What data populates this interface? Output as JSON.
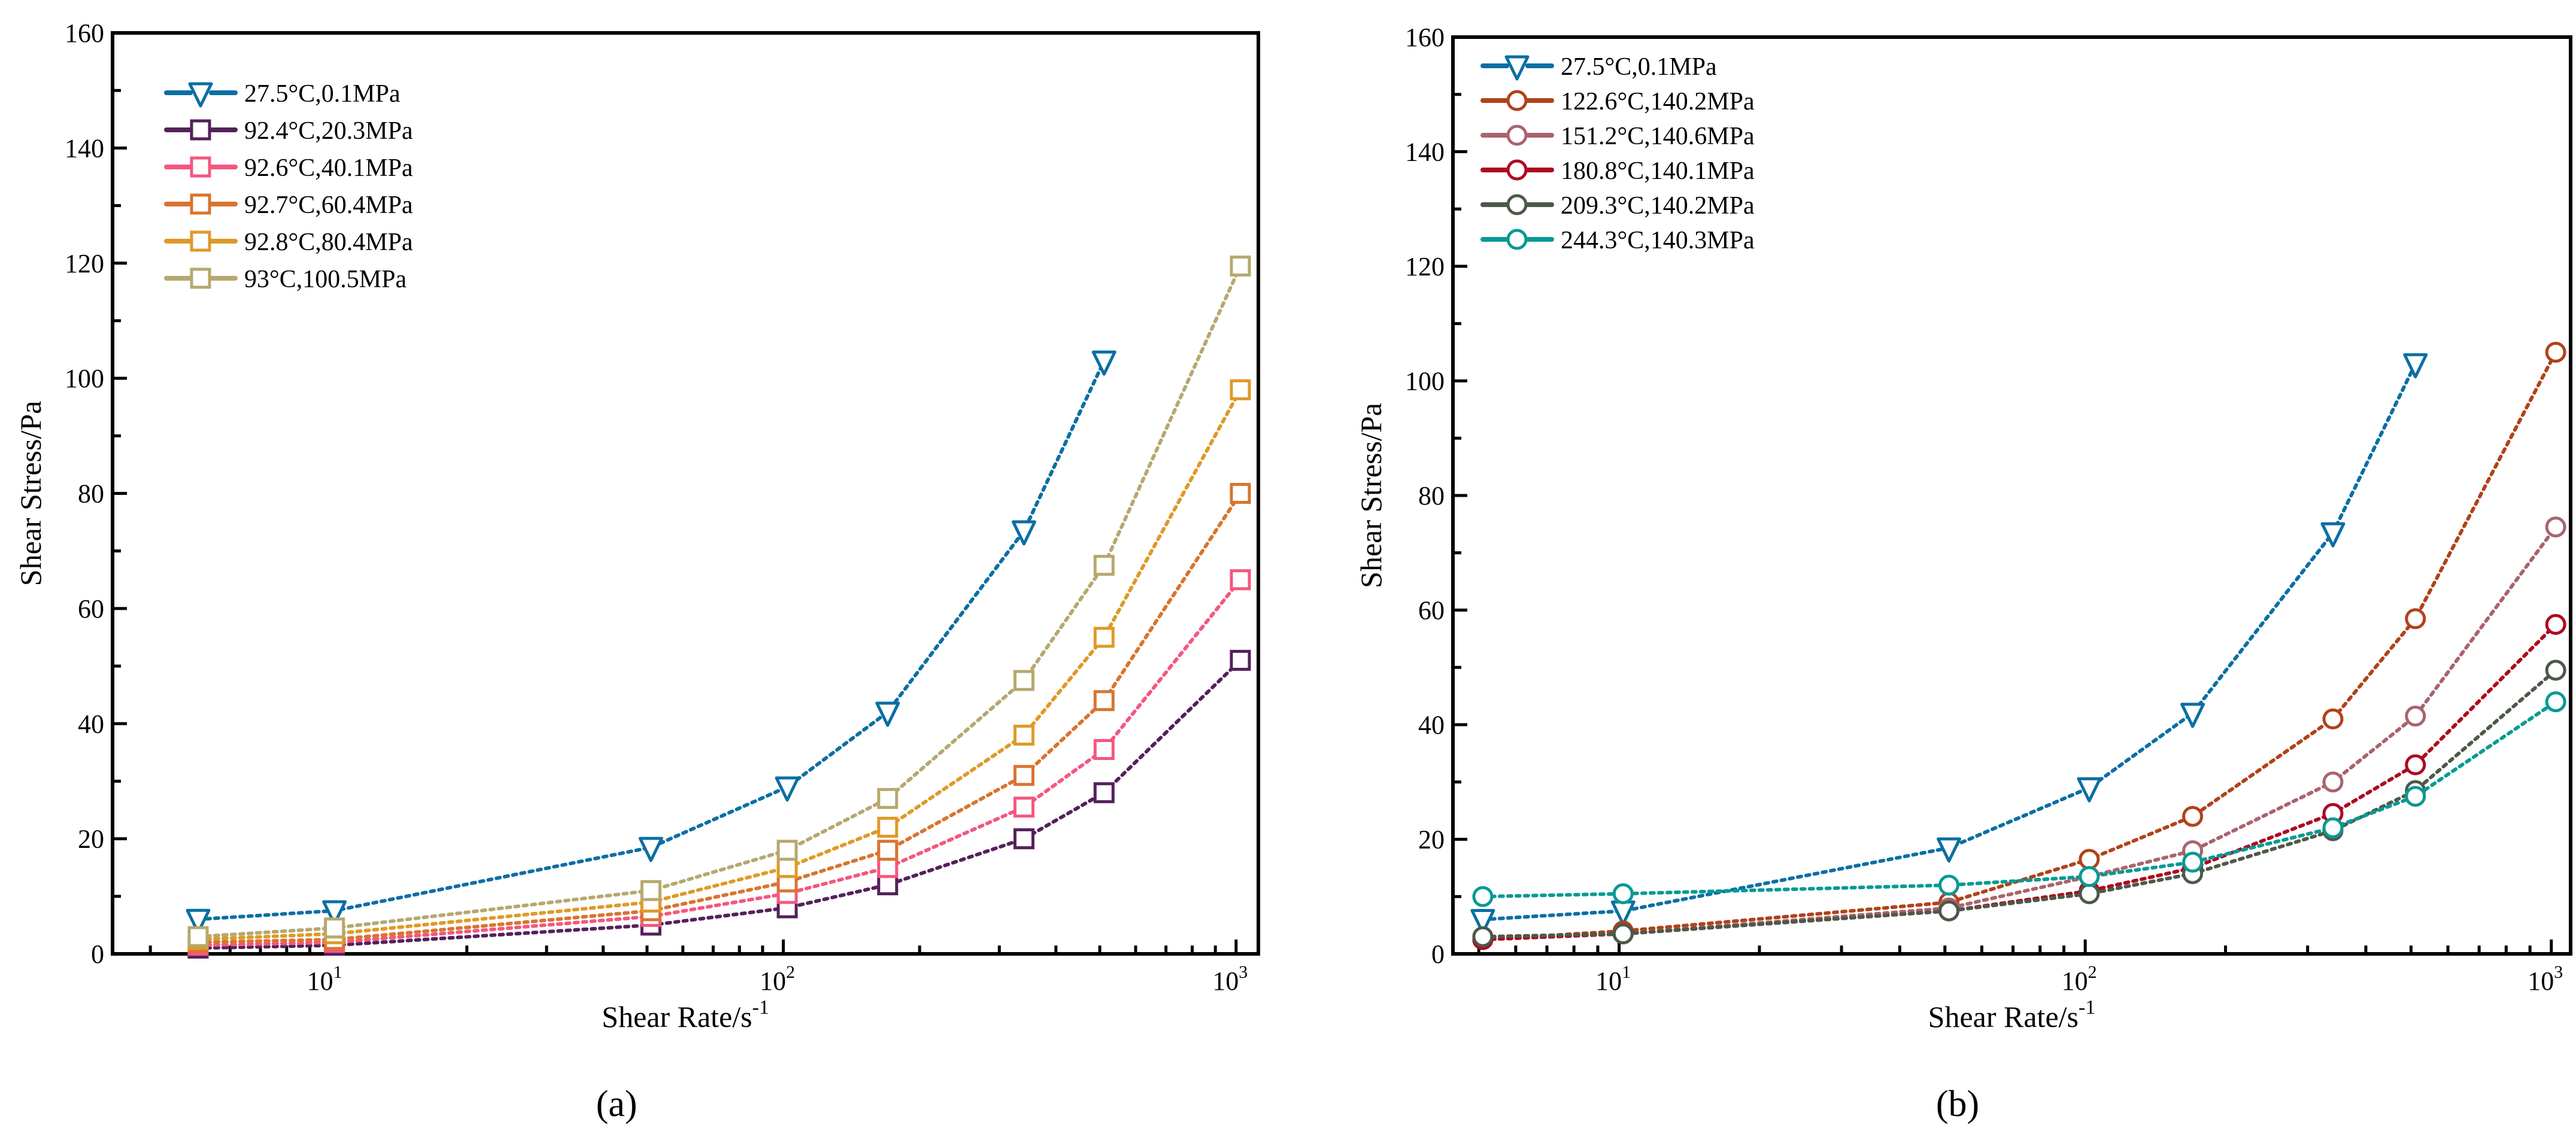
{
  "chart_data": [
    {
      "type": "line",
      "panel_label": "(a)",
      "xlabel": "Shear Rate/s",
      "xlabel_sup": "-1",
      "ylabel": "Shear Stress/Pa",
      "xscale": "log",
      "xlim": [
        3.3,
        1120
      ],
      "ylim": [
        0,
        160
      ],
      "yticks": [
        0,
        20,
        40,
        60,
        80,
        100,
        120,
        140,
        160
      ],
      "xticks": [
        {
          "base": "10",
          "exp": "1",
          "v": 10
        },
        {
          "base": "10",
          "exp": "2",
          "v": 100
        },
        {
          "base": "10",
          "exp": "3",
          "v": 1000
        }
      ],
      "legend_position": "top-left",
      "x": [
        5.1,
        10.2,
        51,
        102,
        170,
        340,
        511,
        1022
      ],
      "series": [
        {
          "name": "27.5°C,0.1MPa",
          "color": "#0a6fa3",
          "marker": "triangle-down",
          "values": [
            6,
            7.5,
            18.5,
            29,
            42,
            73.5,
            103,
            null
          ]
        },
        {
          "name": "92.4°C,20.3MPa",
          "color": "#54215a",
          "marker": "square",
          "values": [
            1,
            1.5,
            5,
            8,
            12,
            20,
            28,
            51
          ]
        },
        {
          "name": "92.6°C,40.1MPa",
          "color": "#f4577f",
          "marker": "square",
          "values": [
            1.5,
            2,
            6.5,
            10.5,
            15,
            25.5,
            35.5,
            65
          ]
        },
        {
          "name": "92.7°C,60.4MPa",
          "color": "#d9742f",
          "marker": "square",
          "values": [
            2,
            2.5,
            7.5,
            12.5,
            18,
            31,
            44,
            80
          ]
        },
        {
          "name": "92.8°C,80.4MPa",
          "color": "#de9a28",
          "marker": "square",
          "values": [
            2.5,
            3.5,
            9,
            15,
            22,
            38,
            55,
            98
          ]
        },
        {
          "name": "93°C,100.5MPa",
          "color": "#b6a86f",
          "marker": "square",
          "values": [
            3,
            4.5,
            11,
            18,
            27,
            47.5,
            67.5,
            119.5
          ]
        }
      ]
    },
    {
      "type": "line",
      "panel_label": "(b)",
      "xlabel": "Shear Rate/s",
      "xlabel_sup": "-1",
      "ylabel": "Shear Stress/Pa",
      "xscale": "log",
      "xlim": [
        4.4,
        1100
      ],
      "ylim": [
        0,
        160
      ],
      "yticks": [
        0,
        20,
        40,
        60,
        80,
        100,
        120,
        140,
        160
      ],
      "xticks": [
        {
          "base": "10",
          "exp": "1",
          "v": 10
        },
        {
          "base": "10",
          "exp": "2",
          "v": 100
        },
        {
          "base": "10",
          "exp": "3",
          "v": 1000
        }
      ],
      "legend_position": "top-left",
      "x": [
        5.1,
        10.2,
        51,
        102,
        170,
        340,
        511,
        1022
      ],
      "series": [
        {
          "name": "27.5°C,0.1MPa",
          "color": "#0a6fa3",
          "marker": "triangle-down",
          "values": [
            6,
            7.5,
            18.5,
            29,
            42,
            73.5,
            103,
            null
          ]
        },
        {
          "name": "122.6°C,140.2MPa",
          "color": "#b04319",
          "marker": "circle",
          "values": [
            2.5,
            4,
            9,
            16.5,
            24,
            41,
            58.5,
            105
          ]
        },
        {
          "name": "151.2°C,140.6MPa",
          "color": "#a9646d",
          "marker": "circle",
          "values": [
            2.5,
            3.5,
            8,
            13.5,
            18,
            30,
            41.5,
            74.5
          ]
        },
        {
          "name": "180.8°C,140.1MPa",
          "color": "#ad0a21",
          "marker": "circle",
          "values": [
            2.5,
            3.5,
            7.5,
            11,
            15,
            24.5,
            33,
            57.5
          ]
        },
        {
          "name": "209.3°C,140.2MPa",
          "color": "#4c5948",
          "marker": "circle",
          "values": [
            3,
            3.5,
            7.5,
            10.5,
            14,
            21.5,
            28.5,
            49.5
          ]
        },
        {
          "name": "244.3°C,140.3MPa",
          "color": "#079a94",
          "marker": "circle",
          "values": [
            10,
            10.5,
            12,
            13.5,
            16,
            22,
            27.5,
            44
          ]
        }
      ]
    }
  ]
}
